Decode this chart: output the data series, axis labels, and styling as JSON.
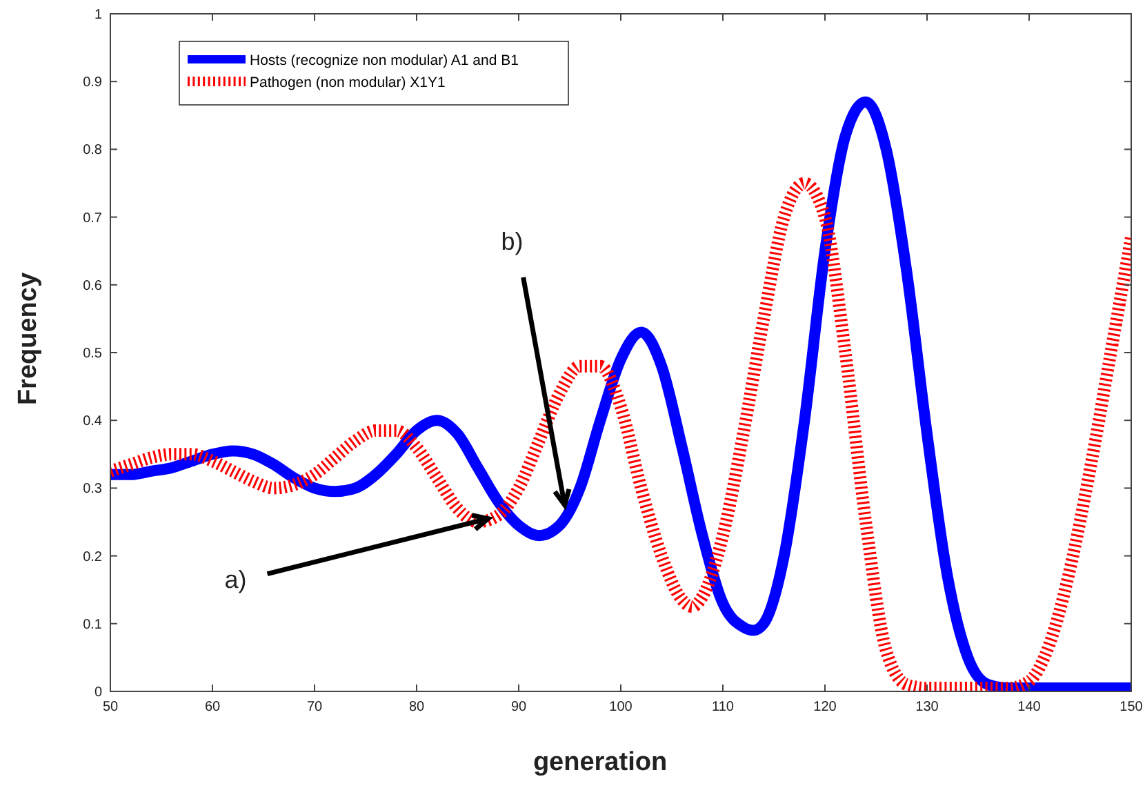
{
  "chart_data": {
    "type": "line",
    "xlabel": "generation",
    "ylabel": "Frequency",
    "xlim": [
      50,
      150
    ],
    "ylim": [
      0,
      1
    ],
    "xticks": [
      50,
      60,
      70,
      80,
      90,
      100,
      110,
      120,
      130,
      140,
      150
    ],
    "yticks": [
      0,
      0.1,
      0.2,
      0.3,
      0.4,
      0.5,
      0.6,
      0.7,
      0.8,
      0.9,
      1
    ],
    "grid": false,
    "legend": "top left",
    "series": [
      {
        "name": "Hosts (recognize non modular) A1 and B1",
        "color": "#0000ff",
        "line_style": "solid",
        "x": [
          50,
          52,
          54,
          56,
          58,
          60,
          62,
          64,
          66,
          68,
          70,
          72,
          74,
          76,
          78,
          80,
          82,
          84,
          86,
          88,
          90,
          92,
          94,
          96,
          98,
          100,
          102,
          104,
          106,
          108,
          110,
          112,
          113,
          114,
          116,
          118,
          120,
          122,
          124,
          126,
          128,
          130,
          132,
          134,
          136,
          138,
          140,
          145,
          150
        ],
        "values": [
          0.32,
          0.32,
          0.325,
          0.33,
          0.34,
          0.35,
          0.355,
          0.35,
          0.335,
          0.315,
          0.3,
          0.295,
          0.3,
          0.32,
          0.35,
          0.385,
          0.4,
          0.38,
          0.33,
          0.28,
          0.245,
          0.23,
          0.245,
          0.3,
          0.4,
          0.49,
          0.53,
          0.48,
          0.36,
          0.23,
          0.13,
          0.095,
          0.09,
          0.1,
          0.2,
          0.4,
          0.65,
          0.82,
          0.87,
          0.8,
          0.62,
          0.38,
          0.17,
          0.05,
          0.01,
          0.005,
          0.005,
          0.005,
          0.005
        ]
      },
      {
        "name": "Pathogen (non modular) X1Y1",
        "color": "#ff0000",
        "line_style": "dotted",
        "x": [
          50,
          52,
          54,
          56,
          58,
          60,
          62,
          64,
          66,
          68,
          70,
          72,
          74,
          76,
          78,
          80,
          82,
          84,
          86,
          88,
          90,
          92,
          94,
          96,
          98,
          100,
          102,
          104,
          106,
          107,
          108,
          110,
          112,
          114,
          116,
          118,
          120,
          122,
          124,
          126,
          128,
          130,
          134,
          138,
          140,
          142,
          144,
          146,
          148,
          150
        ],
        "values": [
          0.325,
          0.335,
          0.345,
          0.35,
          0.35,
          0.34,
          0.325,
          0.31,
          0.3,
          0.305,
          0.32,
          0.345,
          0.37,
          0.385,
          0.385,
          0.36,
          0.315,
          0.27,
          0.25,
          0.26,
          0.3,
          0.37,
          0.44,
          0.48,
          0.48,
          0.42,
          0.3,
          0.2,
          0.135,
          0.125,
          0.14,
          0.23,
          0.38,
          0.55,
          0.7,
          0.75,
          0.7,
          0.5,
          0.25,
          0.06,
          0.01,
          0.005,
          0.005,
          0.005,
          0.015,
          0.07,
          0.18,
          0.33,
          0.5,
          0.67
        ]
      }
    ],
    "annotations": [
      {
        "text": "a)",
        "x": 87,
        "y": 0.255
      },
      {
        "text": "b)",
        "x": 94.5,
        "y": 0.275
      }
    ]
  }
}
